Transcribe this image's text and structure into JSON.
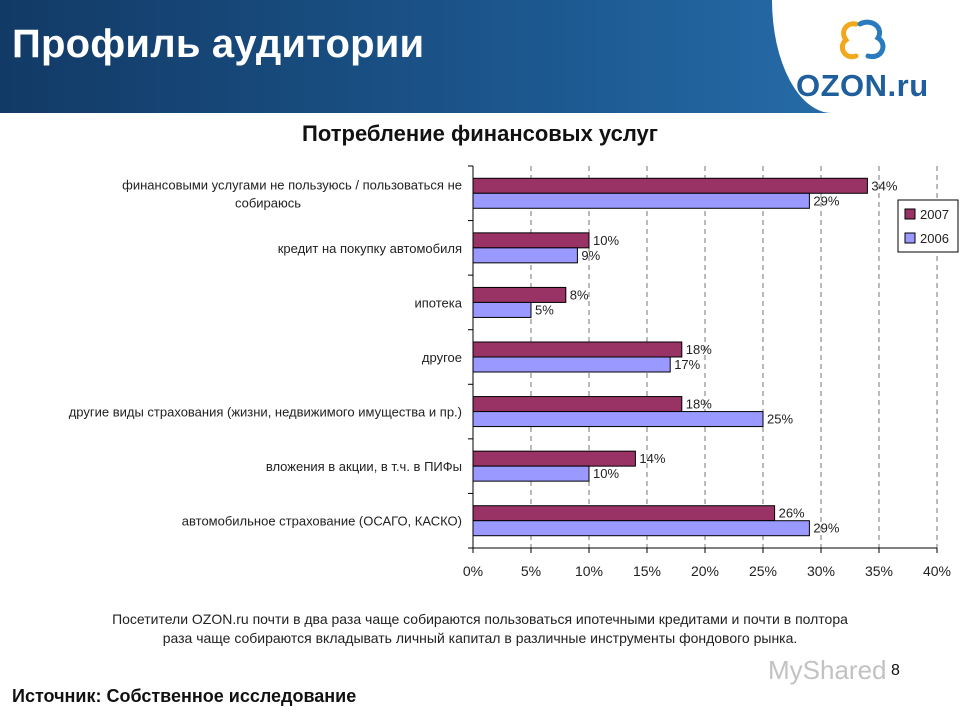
{
  "header": {
    "title": "Профиль аудитории"
  },
  "logo": {
    "text": "OZON.ru"
  },
  "chart_data": {
    "type": "bar",
    "orientation": "horizontal",
    "title": "Потребление финансовых услуг",
    "categories": [
      "финансовыми услугами не пользуюсь / пользоваться не собираюсь",
      "кредит на покупку автомобиля",
      "ипотека",
      "другое",
      "другие виды страхования (жизни, недвижимого имущества и пр.)",
      "вложения в акции, в т.ч. в ПИФы",
      "автомобильное страхование (ОСАГО, КАСКО)"
    ],
    "category_lines": [
      [
        "финансовыми услугами не пользуюсь / пользоваться не",
        "собираюсь"
      ],
      [
        "кредит на покупку автомобиля"
      ],
      [
        "ипотека"
      ],
      [
        "другое"
      ],
      [
        "другие виды страхования (жизни, недвижимого имущества и пр.)"
      ],
      [
        "вложения в акции, в т.ч. в ПИФы"
      ],
      [
        "автомобильное страхование (ОСАГО, КАСКО)"
      ]
    ],
    "series": [
      {
        "name": "2007",
        "color": "#993366",
        "values": [
          34,
          10,
          8,
          18,
          18,
          14,
          26
        ]
      },
      {
        "name": "2006",
        "color": "#9999ff",
        "values": [
          29,
          9,
          5,
          17,
          25,
          10,
          29
        ]
      }
    ],
    "value_unit": "%",
    "xlim": [
      0,
      40
    ],
    "xticks": [
      "0%",
      "5%",
      "10%",
      "15%",
      "20%",
      "25%",
      "30%",
      "35%",
      "40%"
    ],
    "grid": true,
    "legend_position": "right"
  },
  "note": {
    "line1": "Посетители OZON.ru почти в два раза чаще собираются пользоваться ипотечными кредитами и почти в полтора",
    "line2": "раза чаще собираются вкладывать личный капитал в различные инструменты фондового рынка."
  },
  "page_number": "8",
  "watermark": "MyShared",
  "source": "Источник: Собственное исследование"
}
